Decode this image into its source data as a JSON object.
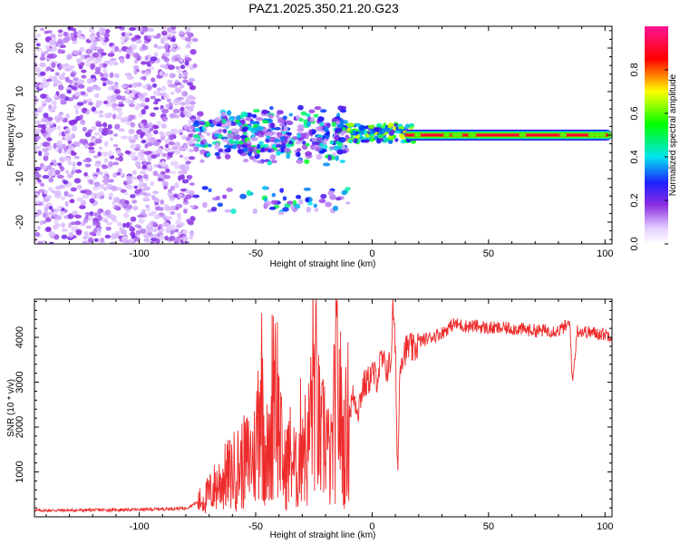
{
  "colors": {
    "snr_line": "#ee2b2b",
    "axis": "#000000",
    "colormap": [
      "#ffffff",
      "#d8b8ff",
      "#8a2be2",
      "#0000ff",
      "#00e5ee",
      "#00ff00",
      "#ffff00",
      "#ff0000",
      "#ff1493"
    ]
  },
  "chart_data": [
    {
      "type": "heatmap",
      "title": "PAZ1.2025.350.21.20.G23",
      "xlabel": "Height of straight line (km)",
      "ylabel": "Frequency (Hz)",
      "xlim": [
        -145,
        103
      ],
      "ylim": [
        -25,
        25
      ],
      "x_ticks": [
        -100,
        -50,
        0,
        50,
        100
      ],
      "y_ticks": [
        -20,
        -10,
        0,
        10,
        20
      ],
      "colorbar": {
        "label": "Normalized spectral amplitude",
        "range": [
          0,
          1
        ],
        "ticks": [
          "0.0",
          "0.2",
          "0.4",
          "0.6",
          "0.8"
        ]
      },
      "features": [
        {
          "region": "noise",
          "x_range": [
            -145,
            -76
          ],
          "freq_range": [
            -25,
            25
          ],
          "amplitude": 0.05
        },
        {
          "region": "turbulent",
          "x_range": [
            -76,
            -10
          ],
          "freq_range": [
            -18,
            10
          ],
          "amplitude": 0.45
        },
        {
          "region": "transition",
          "x_range": [
            -10,
            18
          ],
          "freq_range": [
            -2,
            5
          ],
          "amplitude": 0.9
        },
        {
          "region": "tone",
          "x_range": [
            18,
            103
          ],
          "freq_center": 0,
          "amplitude": 1.0
        }
      ]
    },
    {
      "type": "line",
      "title": "",
      "xlabel": "Height of straight line (km)",
      "ylabel": "SNR (10 * v/v)",
      "xlim": [
        -145,
        103
      ],
      "ylim": [
        0,
        4850
      ],
      "x_ticks": [
        -100,
        -50,
        0,
        50,
        100
      ],
      "y_ticks": [
        1000,
        2000,
        3000,
        4000
      ],
      "series": [
        {
          "name": "SNR",
          "x": [
            -145,
            -120,
            -100,
            -80,
            -72,
            -65,
            -60,
            -55,
            -50,
            -48,
            -46,
            -44,
            -42,
            -40,
            -38,
            -35,
            -32,
            -30,
            -28,
            -25,
            -22,
            -20,
            -18,
            -15,
            -12,
            -10,
            -8,
            -6,
            -4,
            -2,
            0,
            2,
            4,
            6,
            8,
            9,
            10,
            11,
            12,
            14,
            16,
            18,
            20,
            25,
            30,
            35,
            40,
            45,
            50,
            60,
            70,
            80,
            85,
            86,
            88,
            95,
            103
          ],
          "y": [
            140,
            150,
            160,
            190,
            400,
            800,
            1000,
            1200,
            1400,
            3200,
            1600,
            1200,
            3800,
            2000,
            1000,
            1400,
            900,
            2100,
            1200,
            3200,
            1500,
            2000,
            1000,
            3000,
            1500,
            2300,
            2700,
            2400,
            2900,
            3000,
            3200,
            3100,
            3500,
            3300,
            3400,
            4700,
            3600,
            900,
            3500,
            3700,
            3800,
            3700,
            3900,
            4000,
            4100,
            4300,
            4250,
            4250,
            4200,
            4200,
            4150,
            4150,
            4300,
            2950,
            4150,
            4100,
            4050
          ]
        }
      ]
    }
  ]
}
